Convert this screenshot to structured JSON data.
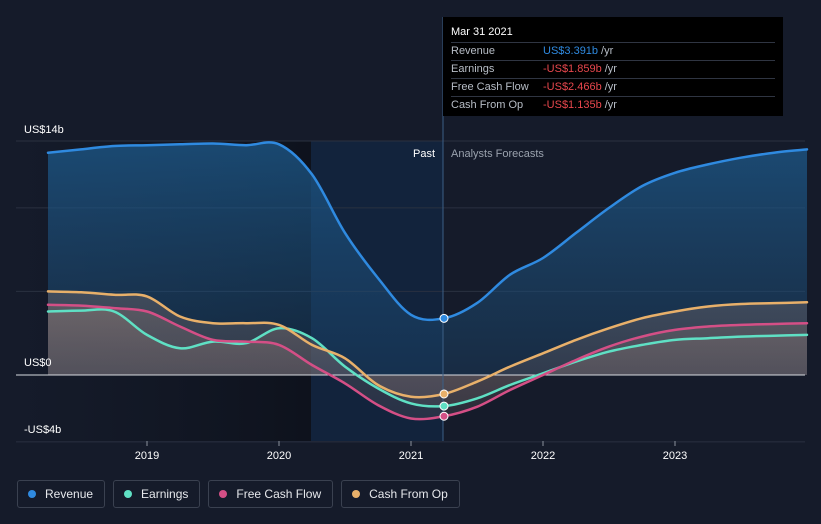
{
  "chart_data": {
    "type": "line",
    "ylim": [
      -4,
      14
    ],
    "y_tick_labels": [
      "US$14b",
      "US$0",
      "-US$4b"
    ],
    "x_tick_labels": [
      "2019",
      "2020",
      "2021",
      "2022",
      "2023"
    ],
    "past_label": "Past",
    "forecast_label": "Analysts Forecasts",
    "divider_date": 2021.25,
    "series": [
      {
        "name": "Revenue",
        "color": "#2f8ae0",
        "points": [
          [
            2018.25,
            13.3
          ],
          [
            2018.5,
            13.5
          ],
          [
            2018.75,
            13.7
          ],
          [
            2019.0,
            13.75
          ],
          [
            2019.25,
            13.8
          ],
          [
            2019.5,
            13.85
          ],
          [
            2019.75,
            13.75
          ],
          [
            2020.0,
            13.8
          ],
          [
            2020.25,
            12.0
          ],
          [
            2020.5,
            8.5
          ],
          [
            2020.75,
            5.8
          ],
          [
            2021.0,
            3.6
          ],
          [
            2021.25,
            3.391
          ],
          [
            2021.5,
            4.3
          ],
          [
            2021.75,
            6.0
          ],
          [
            2022.0,
            7.0
          ],
          [
            2022.25,
            8.5
          ],
          [
            2022.5,
            10.0
          ],
          [
            2022.75,
            11.3
          ],
          [
            2023.0,
            12.1
          ],
          [
            2023.25,
            12.6
          ],
          [
            2023.5,
            13.0
          ],
          [
            2023.75,
            13.3
          ],
          [
            2024.0,
            13.5
          ]
        ]
      },
      {
        "name": "Earnings",
        "color": "#5fe0c4",
        "points": [
          [
            2018.25,
            3.8
          ],
          [
            2018.5,
            3.85
          ],
          [
            2018.75,
            3.8
          ],
          [
            2019.0,
            2.4
          ],
          [
            2019.25,
            1.6
          ],
          [
            2019.5,
            2.0
          ],
          [
            2019.75,
            1.9
          ],
          [
            2020.0,
            2.8
          ],
          [
            2020.25,
            2.2
          ],
          [
            2020.5,
            0.5
          ],
          [
            2020.75,
            -0.8
          ],
          [
            2021.0,
            -1.7
          ],
          [
            2021.25,
            -1.859
          ],
          [
            2021.5,
            -1.4
          ],
          [
            2021.75,
            -0.6
          ],
          [
            2022.0,
            0.1
          ],
          [
            2022.25,
            0.8
          ],
          [
            2022.5,
            1.4
          ],
          [
            2022.75,
            1.8
          ],
          [
            2023.0,
            2.1
          ],
          [
            2023.25,
            2.2
          ],
          [
            2023.5,
            2.3
          ],
          [
            2023.75,
            2.35
          ],
          [
            2024.0,
            2.4
          ]
        ]
      },
      {
        "name": "Free Cash Flow",
        "color": "#d44f86",
        "points": [
          [
            2018.25,
            4.2
          ],
          [
            2018.5,
            4.15
          ],
          [
            2018.75,
            4.0
          ],
          [
            2019.0,
            3.8
          ],
          [
            2019.25,
            2.9
          ],
          [
            2019.5,
            2.1
          ],
          [
            2019.75,
            2.0
          ],
          [
            2020.0,
            1.8
          ],
          [
            2020.25,
            0.6
          ],
          [
            2020.5,
            -0.5
          ],
          [
            2020.75,
            -1.8
          ],
          [
            2021.0,
            -2.6
          ],
          [
            2021.25,
            -2.466
          ],
          [
            2021.5,
            -1.9
          ],
          [
            2021.75,
            -0.9
          ],
          [
            2022.0,
            0.0
          ],
          [
            2022.25,
            0.9
          ],
          [
            2022.5,
            1.7
          ],
          [
            2022.75,
            2.3
          ],
          [
            2023.0,
            2.7
          ],
          [
            2023.25,
            2.9
          ],
          [
            2023.5,
            3.0
          ],
          [
            2023.75,
            3.05
          ],
          [
            2024.0,
            3.1
          ]
        ]
      },
      {
        "name": "Cash From Op",
        "color": "#e8b06a",
        "points": [
          [
            2018.25,
            5.0
          ],
          [
            2018.5,
            4.95
          ],
          [
            2018.75,
            4.8
          ],
          [
            2019.0,
            4.7
          ],
          [
            2019.25,
            3.5
          ],
          [
            2019.5,
            3.1
          ],
          [
            2019.75,
            3.1
          ],
          [
            2020.0,
            3.0
          ],
          [
            2020.25,
            1.8
          ],
          [
            2020.5,
            1.0
          ],
          [
            2020.75,
            -0.6
          ],
          [
            2021.0,
            -1.3
          ],
          [
            2021.25,
            -1.135
          ],
          [
            2021.5,
            -0.4
          ],
          [
            2021.75,
            0.5
          ],
          [
            2022.0,
            1.3
          ],
          [
            2022.25,
            2.1
          ],
          [
            2022.5,
            2.8
          ],
          [
            2022.75,
            3.4
          ],
          [
            2023.0,
            3.8
          ],
          [
            2023.25,
            4.1
          ],
          [
            2023.5,
            4.25
          ],
          [
            2023.75,
            4.3
          ],
          [
            2024.0,
            4.35
          ]
        ]
      }
    ]
  },
  "tooltip": {
    "date": "Mar 31 2021",
    "rows": [
      {
        "label": "Revenue",
        "value": "US$3.391b",
        "unit": "/yr",
        "color": "#2f8ae0"
      },
      {
        "label": "Earnings",
        "value": "-US$1.859b",
        "unit": "/yr",
        "color": "#e8474d"
      },
      {
        "label": "Free Cash Flow",
        "value": "-US$2.466b",
        "unit": "/yr",
        "color": "#e8474d"
      },
      {
        "label": "Cash From Op",
        "value": "-US$1.135b",
        "unit": "/yr",
        "color": "#e8474d"
      }
    ]
  },
  "legend": {
    "items": [
      {
        "label": "Revenue",
        "color": "#2f8ae0"
      },
      {
        "label": "Earnings",
        "color": "#5fe0c4"
      },
      {
        "label": "Free Cash Flow",
        "color": "#d44f86"
      },
      {
        "label": "Cash From Op",
        "color": "#e8b06a"
      }
    ]
  }
}
